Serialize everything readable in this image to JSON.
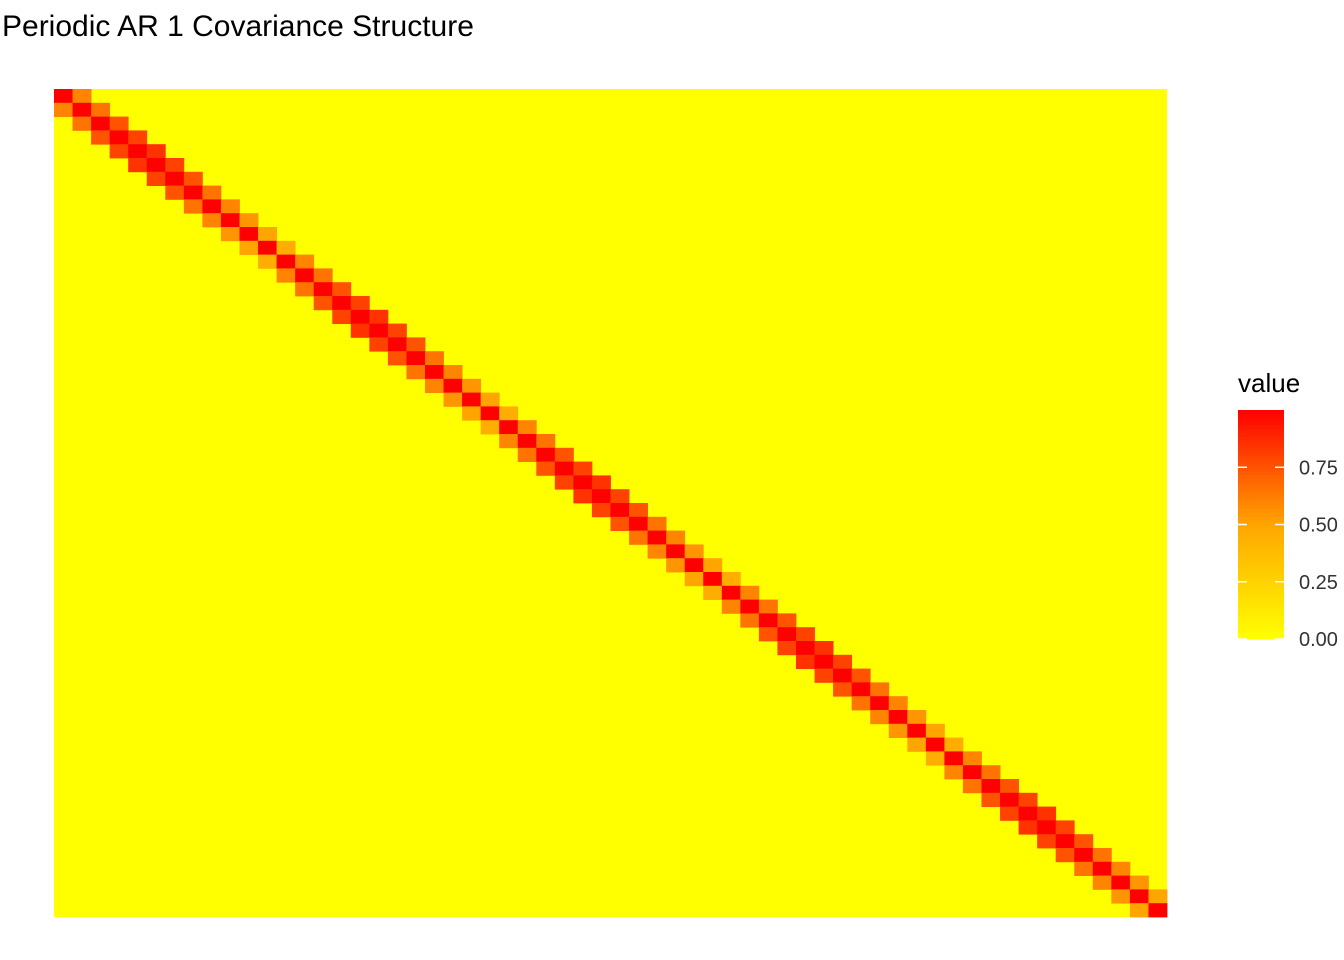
{
  "chart_data": {
    "type": "heatmap",
    "title": "Periodic AR 1 Covariance Structure",
    "xlabel": "",
    "ylabel": "",
    "n": 60,
    "period": 12,
    "diagonal_value": 1.0,
    "off_diagonal_values_by_position_in_period": [
      0.6,
      0.65,
      0.75,
      0.8,
      0.85,
      0.8,
      0.75,
      0.65,
      0.6,
      0.55,
      0.5,
      0.45
    ],
    "other_value": 0.0,
    "scale": {
      "low_color": "#FFFF00",
      "high_color": "#FF0000",
      "mid_color": "#FFA500",
      "min": 0.0,
      "max": 1.0
    },
    "legend": {
      "title": "value",
      "position": "right",
      "ticks": [
        0.0,
        0.25,
        0.5,
        0.75
      ],
      "tick_labels": [
        "0.00",
        "0.25",
        "0.50",
        "0.75"
      ]
    },
    "grid": false
  }
}
